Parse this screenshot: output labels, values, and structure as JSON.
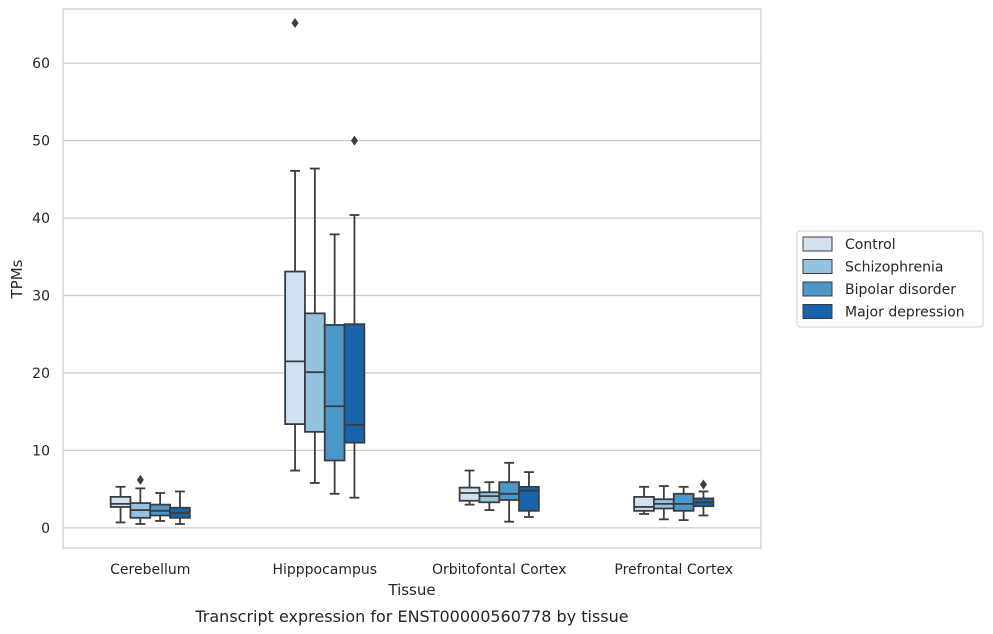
{
  "chart_data": {
    "type": "box",
    "title": "Transcript expression for ENST00000560778 by tissue",
    "xlabel": "Tissue",
    "ylabel": "TPMs",
    "ylim": [
      -2.6,
      67
    ],
    "yticks": [
      0,
      10,
      20,
      30,
      40,
      50,
      60
    ],
    "grid": "horizontal",
    "legend_position": "right",
    "categories": [
      "Cerebellum",
      "Hipppocampus",
      "Orbitofontal Cortex",
      "Prefrontal Cortex"
    ],
    "series": [
      {
        "name": "Control",
        "color": "#cfe1f2",
        "boxes": [
          {
            "whislo": 0.7,
            "q1": 2.7,
            "med": 3.1,
            "q3": 4.0,
            "whishi": 5.3,
            "fliers": []
          },
          {
            "whislo": 7.4,
            "q1": 13.4,
            "med": 21.5,
            "q3": 33.1,
            "whishi": 46.1,
            "fliers": [
              65.2
            ]
          },
          {
            "whislo": 3.0,
            "q1": 3.5,
            "med": 4.5,
            "q3": 5.2,
            "whishi": 7.4,
            "fliers": []
          },
          {
            "whislo": 1.8,
            "q1": 2.2,
            "med": 2.7,
            "q3": 4.0,
            "whishi": 5.3,
            "fliers": []
          }
        ]
      },
      {
        "name": "Schizophrenia",
        "color": "#93c3df",
        "boxes": [
          {
            "whislo": 0.5,
            "q1": 1.3,
            "med": 2.3,
            "q3": 3.2,
            "whishi": 5.1,
            "fliers": [
              6.2
            ]
          },
          {
            "whislo": 5.8,
            "q1": 12.4,
            "med": 20.1,
            "q3": 27.7,
            "whishi": 46.4,
            "fliers": []
          },
          {
            "whislo": 2.3,
            "q1": 3.3,
            "med": 4.1,
            "q3": 4.6,
            "whishi": 5.9,
            "fliers": []
          },
          {
            "whislo": 1.1,
            "q1": 2.5,
            "med": 3.1,
            "q3": 3.7,
            "whishi": 5.4,
            "fliers": []
          }
        ]
      },
      {
        "name": "Bipolar disorder",
        "color": "#4b97c9",
        "boxes": [
          {
            "whislo": 0.9,
            "q1": 1.6,
            "med": 2.2,
            "q3": 3.0,
            "whishi": 4.5,
            "fliers": []
          },
          {
            "whislo": 4.4,
            "q1": 8.7,
            "med": 15.7,
            "q3": 26.2,
            "whishi": 37.9,
            "fliers": []
          },
          {
            "whislo": 0.8,
            "q1": 3.6,
            "med": 4.4,
            "q3": 5.9,
            "whishi": 8.4,
            "fliers": []
          },
          {
            "whislo": 1.0,
            "q1": 2.2,
            "med": 3.1,
            "q3": 4.4,
            "whishi": 5.3,
            "fliers": []
          }
        ]
      },
      {
        "name": "Major depression",
        "color": "#1764ab",
        "boxes": [
          {
            "whislo": 0.5,
            "q1": 1.3,
            "med": 1.9,
            "q3": 2.6,
            "whishi": 4.7,
            "fliers": []
          },
          {
            "whislo": 3.9,
            "q1": 11.0,
            "med": 13.3,
            "q3": 26.3,
            "whishi": 40.4,
            "fliers": [
              50.0
            ]
          },
          {
            "whislo": 1.4,
            "q1": 2.2,
            "med": 4.8,
            "q3": 5.3,
            "whishi": 7.2,
            "fliers": []
          },
          {
            "whislo": 1.6,
            "q1": 2.8,
            "med": 3.3,
            "q3": 3.8,
            "whishi": 4.7,
            "fliers": [
              5.6
            ]
          }
        ]
      }
    ]
  }
}
